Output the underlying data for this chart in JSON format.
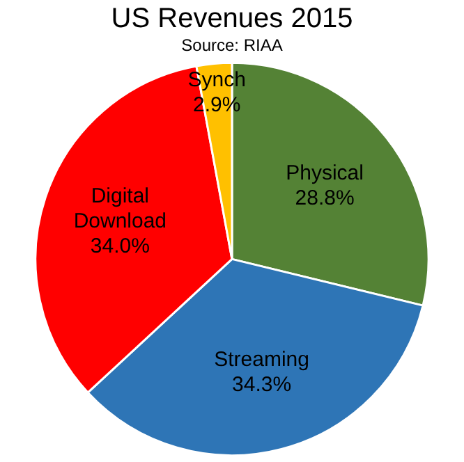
{
  "chart_data": {
    "type": "pie",
    "title": "US Revenues 2015",
    "subtitle": "Source: RIAA",
    "categories": [
      "Physical",
      "Streaming",
      "Digital Download",
      "Synch"
    ],
    "values": [
      28.8,
      34.3,
      34.0,
      2.9
    ],
    "colors": [
      "#548235",
      "#2e75b6",
      "#ff0000",
      "#ffc000"
    ],
    "value_labels": [
      "28.8%",
      "34.3%",
      "34.0%",
      "2.9%"
    ],
    "legend": false
  }
}
